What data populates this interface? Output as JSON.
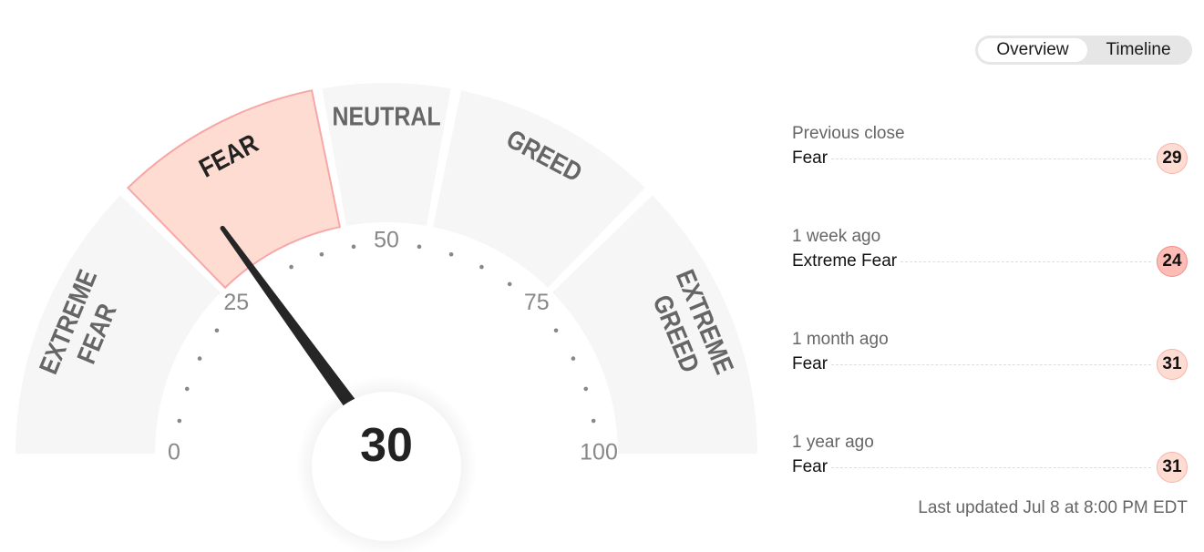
{
  "chart_data": {
    "type": "gauge",
    "value": 30,
    "range": [
      0,
      100
    ],
    "tick_labels": [
      "0",
      "25",
      "50",
      "75",
      "100"
    ],
    "segments": [
      {
        "lines": [
          "EXTREME",
          "FEAR"
        ],
        "from": 0,
        "to": 25
      },
      {
        "lines": [
          "FEAR"
        ],
        "from": 25,
        "to": 44,
        "active": true
      },
      {
        "lines": [
          "NEUTRAL"
        ],
        "from": 44,
        "to": 56
      },
      {
        "lines": [
          "GREED"
        ],
        "from": 56,
        "to": 75
      },
      {
        "lines": [
          "EXTREME",
          "GREED"
        ],
        "from": 75,
        "to": 100
      }
    ],
    "colors": {
      "segment": "#f6f6f6",
      "active_fill": "#ffdcd2",
      "active_stroke": "#f7a7a7",
      "label": "#666666",
      "active_label": "#222222",
      "needle": "#262626",
      "tick": "#888888"
    }
  },
  "tabs": [
    {
      "label": "Overview",
      "active": true
    },
    {
      "label": "Timeline",
      "active": false
    }
  ],
  "history": [
    {
      "label": "Previous close",
      "rating": "Fear",
      "value": "29",
      "fill": "#ffdcd2",
      "border": "#f7b2a8"
    },
    {
      "label": "1 week ago",
      "rating": "Extreme Fear",
      "value": "24",
      "fill": "#fdbcb5",
      "border": "#f28b8b"
    },
    {
      "label": "1 month ago",
      "rating": "Fear",
      "value": "31",
      "fill": "#ffdcd2",
      "border": "#f7b2a8"
    },
    {
      "label": "1 year ago",
      "rating": "Fear",
      "value": "31",
      "fill": "#ffdcd2",
      "border": "#f7b2a8"
    }
  ],
  "last_updated": "Last updated Jul 8 at 8:00 PM EDT"
}
